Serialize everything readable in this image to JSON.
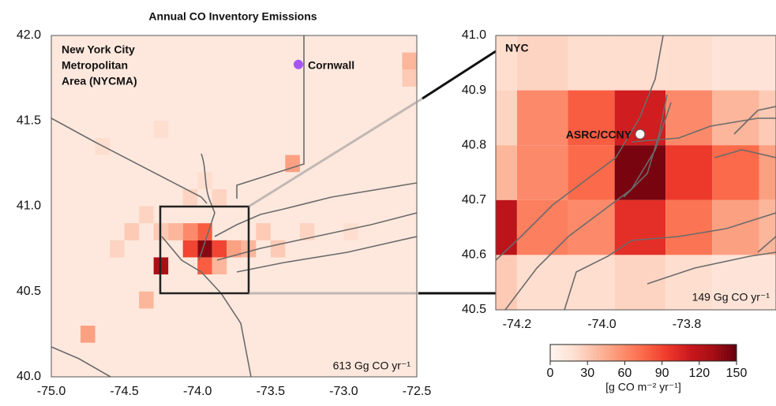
{
  "title": "Annual CO Inventory Emissions",
  "colormap": [
    "#fff5f0",
    "#fee0d2",
    "#fcbba1",
    "#fc9272",
    "#fb6a4a",
    "#ef3b2c",
    "#cb181d",
    "#a50f15",
    "#67000d"
  ],
  "left_map": {
    "label_lines": [
      "New York City",
      "Metropolitan",
      "Area (NYCMA)"
    ],
    "site": "Cornwall",
    "site_lon": -73.31,
    "site_lat": 41.83,
    "site_color": "#a855f7",
    "total": "613 Gg CO yr⁻¹",
    "xlim": [
      -75,
      -72.5
    ],
    "ylim": [
      40,
      42
    ],
    "xticks": [
      {
        "value": -75,
        "label": "-75.0"
      },
      {
        "value": -74.5,
        "label": "-74.5"
      },
      {
        "value": -74,
        "label": "-74.0"
      },
      {
        "value": -73.5,
        "label": "-73.5"
      },
      {
        "value": -73,
        "label": "-73.0"
      },
      {
        "value": -72.5,
        "label": "-72.5"
      }
    ],
    "yticks": [
      {
        "value": 40,
        "label": "40.0"
      },
      {
        "value": 40.5,
        "label": "40.5"
      },
      {
        "value": 41,
        "label": "41.0"
      },
      {
        "value": 41.5,
        "label": "41.5"
      },
      {
        "value": 42,
        "label": "42.0"
      }
    ],
    "cell_size": 0.1,
    "background_value": 12,
    "cells": [
      [
        -74.0,
        40.7,
        140
      ],
      [
        -74.1,
        40.7,
        90
      ],
      [
        -73.9,
        40.7,
        90
      ],
      [
        -74.0,
        40.8,
        80
      ],
      [
        -74.1,
        40.8,
        60
      ],
      [
        -74.3,
        40.6,
        130
      ],
      [
        -74.4,
        40.4,
        40
      ],
      [
        -74.8,
        40.2,
        50
      ],
      [
        -73.4,
        41.2,
        50
      ],
      [
        -72.6,
        41.8,
        40
      ],
      [
        -72.6,
        41.7,
        30
      ],
      [
        -73.8,
        40.7,
        50
      ],
      [
        -73.7,
        40.7,
        40
      ],
      [
        -74.0,
        40.6,
        80
      ],
      [
        -73.9,
        40.6,
        40
      ],
      [
        -74.2,
        40.8,
        40
      ],
      [
        -74.3,
        40.8,
        30
      ],
      [
        -74.5,
        40.8,
        30
      ],
      [
        -74.6,
        40.7,
        25
      ],
      [
        -74.4,
        40.9,
        25
      ],
      [
        -73.6,
        40.8,
        30
      ],
      [
        -73.5,
        40.7,
        30
      ],
      [
        -73.3,
        40.8,
        25
      ],
      [
        -73.0,
        40.8,
        20
      ],
      [
        -74.1,
        41.0,
        25
      ],
      [
        -73.9,
        41.0,
        25
      ],
      [
        -74.0,
        41.1,
        20
      ],
      [
        -74.3,
        41.4,
        20
      ],
      [
        -74.7,
        41.3,
        20
      ]
    ]
  },
  "right_map": {
    "label": "NYC",
    "site": "ASRC/CCNY",
    "site_lon": -73.91,
    "site_lat": 40.82,
    "site_color": "#ffffff",
    "total": "149 Gg CO yr⁻¹",
    "xlim": [
      -74.25,
      -73.59
    ],
    "ylim": [
      40.5,
      41.0
    ],
    "xticks": [
      -74.2,
      {
        "value": -74,
        "label": "-74.0"
      },
      -73.8
    ],
    "yticks": [
      40.5,
      40.6,
      40.7,
      40.8,
      40.9,
      {
        "value": 41,
        "label": "41.0"
      }
    ],
    "lon_edges": [
      -74.25,
      -74.2,
      -74.08,
      -73.97,
      -73.85,
      -73.74,
      -73.63,
      -73.59
    ],
    "lat_edges": [
      41.0,
      40.9,
      40.8,
      40.7,
      40.6,
      40.5
    ],
    "values": [
      [
        20,
        25,
        20,
        20,
        20,
        15,
        15
      ],
      [
        25,
        60,
        80,
        110,
        60,
        40,
        30
      ],
      [
        40,
        60,
        75,
        145,
        95,
        75,
        50
      ],
      [
        120,
        65,
        60,
        100,
        70,
        50,
        40
      ],
      [
        30,
        20,
        20,
        25,
        20,
        15,
        15
      ]
    ]
  },
  "colorbar": {
    "range": [
      0,
      150
    ],
    "ticks": [
      0,
      30,
      60,
      90,
      120,
      150
    ],
    "label": "[g CO m⁻² yr⁻¹]"
  }
}
